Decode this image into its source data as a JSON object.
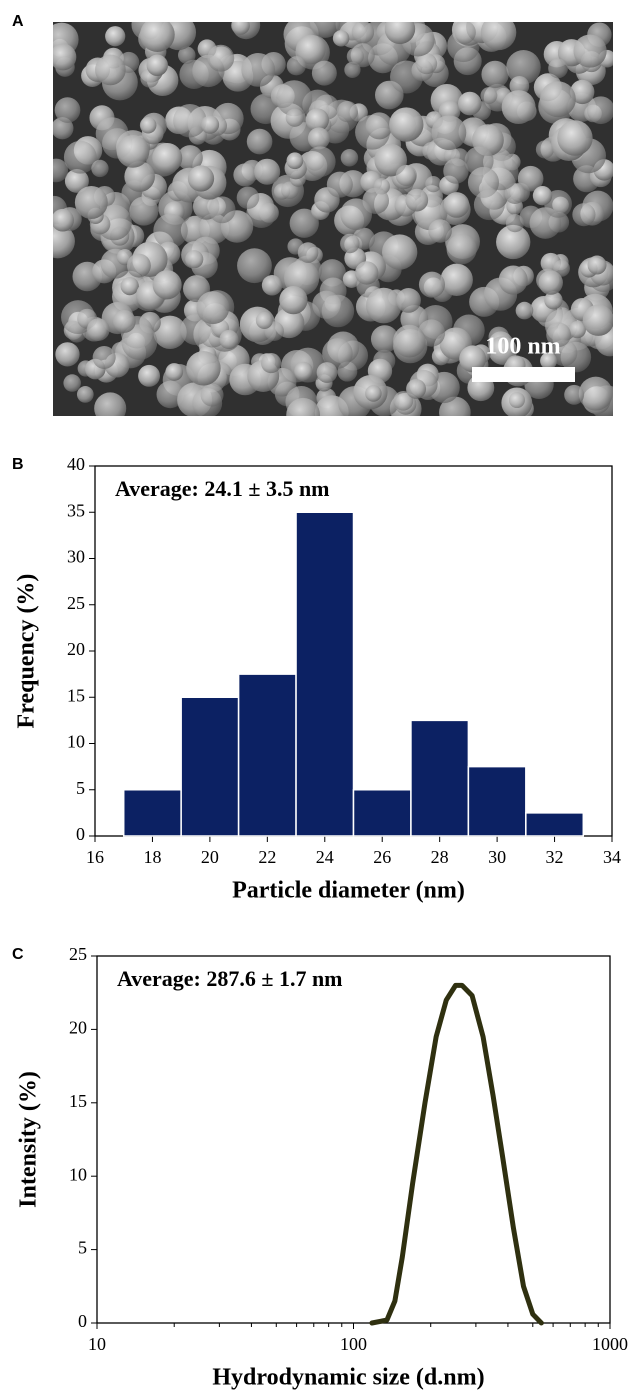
{
  "chart_data": [
    {
      "type": "image",
      "panel_label": "A",
      "scale_bar_label": "100 nm"
    },
    {
      "type": "histogram",
      "panel_label": "B",
      "annotation": "Average: 24.1 ± 3.5 nm",
      "bins": [
        17,
        19,
        21,
        23,
        25,
        27,
        29,
        31,
        33
      ],
      "values": [
        5,
        15,
        17.5,
        35,
        5,
        12.5,
        7.5,
        2.5
      ],
      "color": "#0c2163",
      "xlim": [
        16,
        34
      ],
      "xticks": [
        16,
        18,
        20,
        22,
        24,
        26,
        28,
        30,
        32,
        34
      ],
      "ylim": [
        0,
        40
      ],
      "yticks": [
        0,
        5,
        10,
        15,
        20,
        25,
        30,
        35,
        40
      ],
      "x_label": "Particle diameter (nm)",
      "y_label": "Frequency (%)"
    },
    {
      "type": "line",
      "panel_label": "C",
      "annotation": "Average: 287.6 ± 1.7 nm",
      "xscale": "log",
      "x": [
        118,
        135,
        145,
        155,
        170,
        190,
        210,
        230,
        250,
        265,
        290,
        320,
        350,
        380,
        420,
        460,
        500,
        540
      ],
      "values": [
        0,
        0.2,
        1.5,
        4.5,
        9.5,
        15,
        19.5,
        22,
        23,
        23,
        22.3,
        19.5,
        15.5,
        11.5,
        6.5,
        2.5,
        0.6,
        0
      ],
      "color": "#2f3010",
      "xlim": [
        10,
        1000
      ],
      "xticks": [
        10,
        100,
        1000
      ],
      "xminorticks": [
        20,
        30,
        40,
        50,
        60,
        70,
        80,
        90,
        200,
        300,
        400,
        500,
        600,
        700,
        800,
        900
      ],
      "ylim": [
        0,
        25
      ],
      "yticks": [
        0,
        5,
        10,
        15,
        20,
        25
      ],
      "x_label": "Hydrodynamic size (d.nm)",
      "y_label": "Intensity (%)"
    }
  ]
}
